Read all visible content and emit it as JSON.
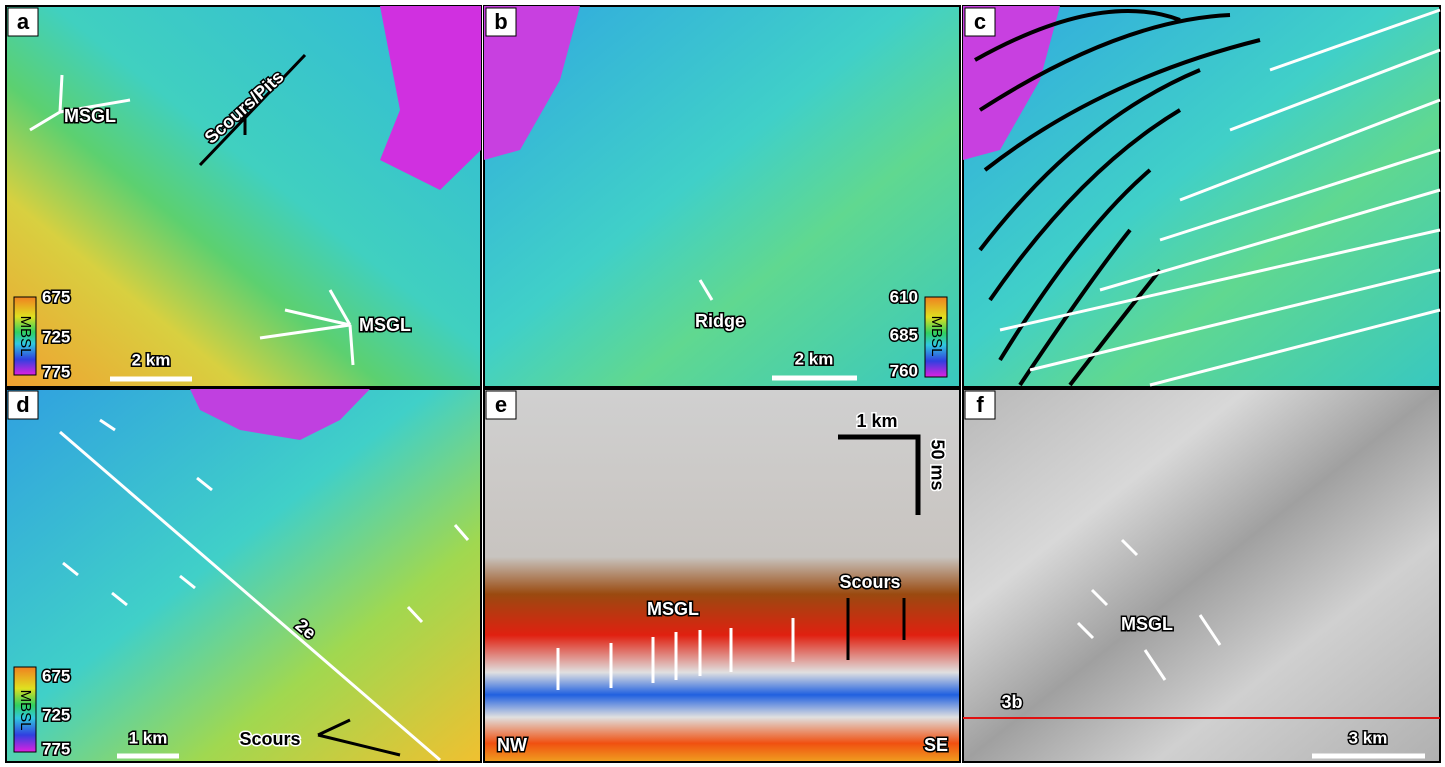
{
  "panels": [
    {
      "label": "a",
      "annotations": [
        "MSGL",
        "Scours/Pits",
        "MSGL"
      ],
      "scale_bar": "2 km",
      "colorbar": {
        "title": "MBSL",
        "ticks": [
          "675",
          "725",
          "775"
        ]
      }
    },
    {
      "label": "b",
      "annotations": [
        "Ridge"
      ],
      "scale_bar": "2 km",
      "colorbar": {
        "title": "MBSL",
        "ticks": [
          "610",
          "685",
          "760"
        ]
      }
    },
    {
      "label": "c"
    },
    {
      "label": "d",
      "annotations": [
        "2e",
        "Scours"
      ],
      "scale_bar": "1 km",
      "colorbar": {
        "title": "MBSL",
        "ticks": [
          "675",
          "725",
          "775"
        ]
      }
    },
    {
      "label": "e",
      "annotations": [
        "MSGL",
        "Scours",
        "NW",
        "SE"
      ],
      "scale_bar_horizontal": "1 km",
      "scale_bar_vertical": "50 ms"
    },
    {
      "label": "f",
      "annotations": [
        "MSGL",
        "3b"
      ],
      "scale_bar": "3 km"
    }
  ]
}
